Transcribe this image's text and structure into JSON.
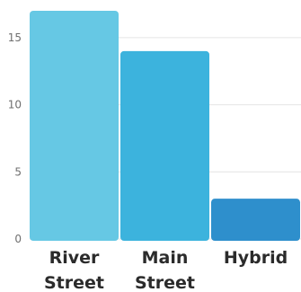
{
  "chart_data": {
    "type": "bar",
    "categories": [
      "River Street",
      "Main Street",
      "Hybrid"
    ],
    "category_lines": [
      [
        "River",
        "Street"
      ],
      [
        "Main",
        "Street"
      ],
      [
        "Hybrid"
      ]
    ],
    "values": [
      17,
      14,
      3
    ],
    "colors": [
      "#66c8e4",
      "#3cb3dd",
      "#2e8fcc"
    ],
    "ylim": [
      0,
      17
    ],
    "yticks": [
      0,
      5,
      10,
      15
    ],
    "grid": true
  }
}
